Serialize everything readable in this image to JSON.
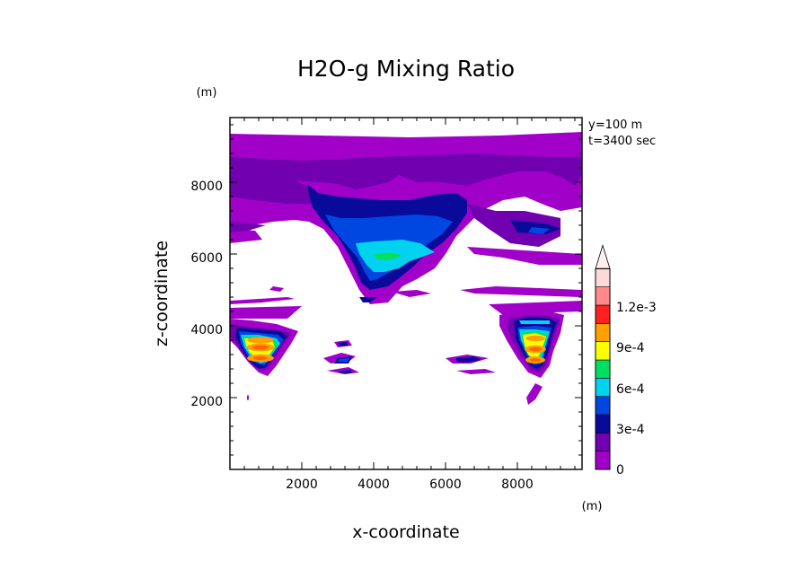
{
  "chart_data": {
    "type": "heatmap",
    "title": "H2O-g Mixing Ratio",
    "xlabel": "x-coordinate",
    "ylabel": "z-coordinate",
    "x_unit": "(m)",
    "y_unit": "(m)",
    "annotations": [
      "y=100 m",
      "t=3400 sec"
    ],
    "xlim": [
      0,
      9800
    ],
    "ylim": [
      0,
      9800
    ],
    "x_ticks": [
      2000,
      4000,
      6000,
      8000
    ],
    "y_ticks": [
      2000,
      4000,
      6000,
      8000
    ],
    "x_tick_labels": [
      "2000",
      "4000",
      "6000",
      "8000"
    ],
    "y_tick_labels": [
      "2000",
      "4000",
      "6000",
      "8000"
    ],
    "colorbar": {
      "levels": [
        "0",
        "1.5e-4",
        "3e-4",
        "4.5e-4",
        "6e-4",
        "7.5e-4",
        "9e-4",
        "1.05e-3",
        "1.2e-3",
        "1.35e-3"
      ],
      "labels": [
        "0",
        "3e-4",
        "6e-4",
        "9e-4",
        "1.2e-3"
      ],
      "colors": [
        "#a000c8",
        "#7000b0",
        "#0a0a9a",
        "#0046e0",
        "#00d2f0",
        "#00e060",
        "#ffff00",
        "#ffa000",
        "#ff6400",
        "#ff2020",
        "#ff8888",
        "#ffd8d8"
      ]
    },
    "features": [
      {
        "name": "upper moisture layer",
        "x_range": [
          0,
          9800
        ],
        "z_range": [
          5500,
          9300
        ],
        "max_level": "1.5e-4"
      },
      {
        "name": "anvil outflow core",
        "x_range": [
          2500,
          7000
        ],
        "z_range": [
          5000,
          7900
        ],
        "max_level": "6e-4"
      },
      {
        "name": "left low-level cell",
        "x_range": [
          0,
          1800
        ],
        "z_range": [
          2500,
          4200
        ],
        "max_level": "1.05e-3"
      },
      {
        "name": "right low-level cell",
        "x_range": [
          7600,
          9300
        ],
        "z_range": [
          2500,
          4300
        ],
        "max_level": "1.05e-3"
      },
      {
        "name": "small cell x~3200",
        "x_range": [
          2600,
          3600
        ],
        "z_range": [
          2600,
          3500
        ],
        "max_level": "3e-4"
      },
      {
        "name": "small cell x~6500",
        "x_range": [
          6000,
          7200
        ],
        "z_range": [
          2600,
          3200
        ],
        "max_level": "3e-4"
      }
    ]
  }
}
